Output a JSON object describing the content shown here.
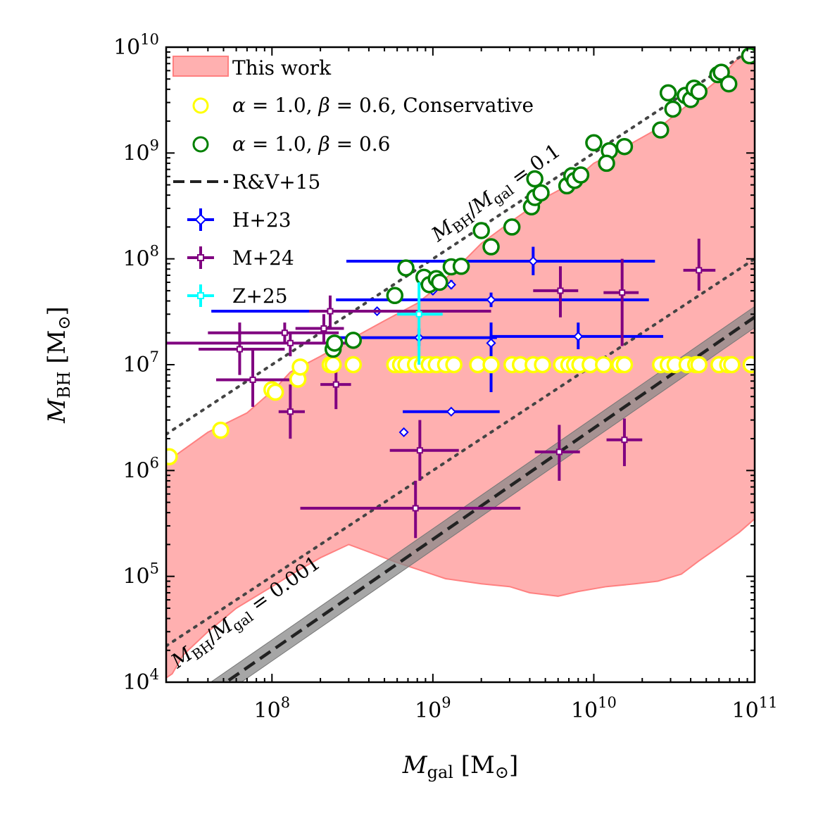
{
  "chart_data": {
    "type": "scatter",
    "x_scale": "log",
    "y_scale": "log",
    "xlim": [
      22000000.0,
      100000000000.0
    ],
    "ylim": [
      10000.0,
      10000000000.0
    ],
    "xlabel": "M_gal [M⊙]",
    "ylabel": "M_BH [M⊙]",
    "xlabel_main": "M",
    "xlabel_sub": "gal",
    "xlabel_unit": "[M",
    "xlabel_sun": "⊙",
    "ylabel_main": "M",
    "ylabel_sub": "BH",
    "ylabel_unit": "[M",
    "ylabel_sun": "⊙",
    "x_ticks": [
      {
        "value": 100000000.0,
        "base": "10",
        "exp": "8"
      },
      {
        "value": 1000000000.0,
        "base": "10",
        "exp": "9"
      },
      {
        "value": 10000000000.0,
        "base": "10",
        "exp": "10"
      },
      {
        "value": 100000000000.0,
        "base": "10",
        "exp": "11"
      }
    ],
    "y_ticks": [
      {
        "value": 10000.0,
        "base": "10",
        "exp": "4"
      },
      {
        "value": 100000.0,
        "base": "10",
        "exp": "5"
      },
      {
        "value": 1000000.0,
        "base": "10",
        "exp": "6"
      },
      {
        "value": 10000000.0,
        "base": "10",
        "exp": "7"
      },
      {
        "value": 100000000.0,
        "base": "10",
        "exp": "8"
      },
      {
        "value": 1000000000.0,
        "base": "10",
        "exp": "9"
      },
      {
        "value": 10000000000.0,
        "base": "10",
        "exp": "10"
      }
    ],
    "legend": {
      "placement": "upper-left",
      "entries": [
        {
          "key": "this_work",
          "label": "This work"
        },
        {
          "key": "conservative",
          "label": "α = 1.0, β = 0.6, Conservative"
        },
        {
          "key": "model",
          "label": "α = 1.0, β = 0.6"
        },
        {
          "key": "rv15",
          "label": "R&V+15"
        },
        {
          "key": "h23",
          "label": "H+23"
        },
        {
          "key": "m24",
          "label": "M+24"
        },
        {
          "key": "z25",
          "label": "Z+25"
        }
      ]
    },
    "annotations": [
      {
        "key": "ratio_01",
        "text": "M_BH/M_gal = 0.1",
        "ratio": 0.1
      },
      {
        "key": "ratio_0001",
        "text": "M_BH/M_gal = 0.001",
        "ratio": 0.001
      }
    ],
    "colors": {
      "this_work_fill": "#ffb0b0",
      "this_work_edge": "#ff8080",
      "conservative": "#ffff00",
      "model": "#008000",
      "rv15": "#222222",
      "rv15_band": "#888888",
      "h23": "#0000ff",
      "m24": "#800080",
      "z25": "#00ffff",
      "ratio_lines": "#444444"
    },
    "this_work_region": {
      "upper": [
        [
          22000000.0,
          1200000.0
        ],
        [
          40000000.0,
          2300000.0
        ],
        [
          70000000.0,
          3500000.0
        ],
        [
          105000000.0,
          6000000.0
        ],
        [
          130000000.0,
          8500000.0
        ],
        [
          200000000.0,
          12000000.0
        ],
        [
          300000000.0,
          17000000.0
        ],
        [
          500000000.0,
          26000000.0
        ],
        [
          800000000.0,
          38000000.0
        ],
        [
          1000000000.0,
          50000000.0
        ],
        [
          1500000000.0,
          90000000.0
        ],
        [
          2000000000.0,
          140000000.0
        ],
        [
          3000000000.0,
          220000000.0
        ],
        [
          5000000000.0,
          380000000.0
        ],
        [
          7000000000.0,
          500000000.0
        ],
        [
          10000000000.0,
          800000000.0
        ],
        [
          15000000000.0,
          1100000000.0
        ],
        [
          25000000000.0,
          1700000000.0
        ],
        [
          40000000000.0,
          3000000000.0
        ],
        [
          60000000000.0,
          5000000000.0
        ],
        [
          80000000000.0,
          8000000000.0
        ],
        [
          100000000000.0,
          10000000000.0
        ]
      ],
      "lower": [
        [
          100000000000.0,
          350000.0
        ],
        [
          80000000000.0,
          260000.0
        ],
        [
          60000000000.0,
          190000.0
        ],
        [
          45000000000.0,
          140000.0
        ],
        [
          35000000000.0,
          105000.0
        ],
        [
          25000000000.0,
          90000.0
        ],
        [
          18000000000.0,
          85000.0
        ],
        [
          12000000000.0,
          80000.0
        ],
        [
          8000000000.0,
          72000.0
        ],
        [
          6000000000.0,
          65000.0
        ],
        [
          4000000000.0,
          70000.0
        ],
        [
          3000000000.0,
          80000.0
        ],
        [
          2000000000.0,
          85000.0
        ],
        [
          1200000000.0,
          95000.0
        ],
        [
          900000000.0,
          110000.0
        ],
        [
          600000000.0,
          135000.0
        ],
        [
          400000000.0,
          170000.0
        ],
        [
          300000000.0,
          200000.0
        ],
        [
          200000000.0,
          150000.0
        ],
        [
          140000000.0,
          110000.0
        ],
        [
          100000000.0,
          80000.0
        ],
        [
          60000000.0,
          50000.0
        ],
        [
          40000000.0,
          30000.0
        ],
        [
          28000000.0,
          18000.0
        ],
        [
          24000000.0,
          12000.0
        ],
        [
          22000000.0,
          11000.0
        ]
      ]
    },
    "rv15_relation": {
      "description": "log M_BH = 7.45 + 1.05 log(M_gal/1e11)",
      "intercept_log": 7.45,
      "slope": 1.05,
      "scatter_dex": 0.1
    },
    "conservative_points": [
      [
        23000000.0,
        1350000.0
      ],
      [
        48000000.0,
        2400000.0
      ],
      [
        100000000.0,
        5800000.0
      ],
      [
        105000000.0,
        5500000.0
      ],
      [
        145000000.0,
        7300000.0
      ],
      [
        150000000.0,
        9500000.0
      ],
      [
        230000000.0,
        10000000.0
      ],
      [
        240000000.0,
        10000000.0
      ],
      [
        320000000.0,
        10000000.0
      ],
      [
        580000000.0,
        10000000.0
      ],
      [
        630000000.0,
        10000000.0
      ],
      [
        680000000.0,
        10000000.0
      ],
      [
        780000000.0,
        10000000.0
      ],
      [
        860000000.0,
        10000000.0
      ],
      [
        950000000.0,
        10000000.0
      ],
      [
        1050000000.0,
        10000000.0
      ],
      [
        1200000000.0,
        10000000.0
      ],
      [
        1350000000.0,
        10000000.0
      ],
      [
        1900000000.0,
        10000000.0
      ],
      [
        2300000000.0,
        10000000.0
      ],
      [
        3100000000.0,
        10000000.0
      ],
      [
        3500000000.0,
        10000000.0
      ],
      [
        4200000000.0,
        10000000.0
      ],
      [
        4800000000.0,
        10000000.0
      ],
      [
        6300000000.0,
        10000000.0
      ],
      [
        7000000000.0,
        10000000.0
      ],
      [
        7600000000.0,
        10000000.0
      ],
      [
        8200000000.0,
        10000000.0
      ],
      [
        9500000000.0,
        10000000.0
      ],
      [
        11500000000.0,
        10000000.0
      ],
      [
        14500000000.0,
        10000000.0
      ],
      [
        15500000000.0,
        10000000.0
      ],
      [
        26000000000.0,
        10000000.0
      ],
      [
        29000000000.0,
        10000000.0
      ],
      [
        32000000000.0,
        10000000.0
      ],
      [
        38000000000.0,
        10000000.0
      ],
      [
        43000000000.0,
        10000000.0
      ],
      [
        45000000000.0,
        10000000.0
      ],
      [
        60000000000.0,
        10000000.0
      ],
      [
        68000000000.0,
        10000000.0
      ],
      [
        72000000000.0,
        10000000.0
      ],
      [
        95000000000.0,
        10000000.0
      ]
    ],
    "model_points": [
      [
        240000000.0,
        14000000.0
      ],
      [
        245000000.0,
        16000000.0
      ],
      [
        320000000.0,
        17000000.0
      ],
      [
        580000000.0,
        45000000.0
      ],
      [
        680000000.0,
        82000000.0
      ],
      [
        880000000.0,
        67000000.0
      ],
      [
        950000000.0,
        57000000.0
      ],
      [
        1050000000.0,
        65000000.0
      ],
      [
        1100000000.0,
        60000000.0
      ],
      [
        1300000000.0,
        84000000.0
      ],
      [
        1500000000.0,
        85000000.0
      ],
      [
        2000000000.0,
        185000000.0
      ],
      [
        2300000000.0,
        130000000.0
      ],
      [
        3100000000.0,
        200000000.0
      ],
      [
        4100000000.0,
        310000000.0
      ],
      [
        4300000000.0,
        380000000.0
      ],
      [
        4700000000.0,
        420000000.0
      ],
      [
        4300000000.0,
        570000000.0
      ],
      [
        6800000000.0,
        490000000.0
      ],
      [
        7300000000.0,
        610000000.0
      ],
      [
        7600000000.0,
        550000000.0
      ],
      [
        8300000000.0,
        620000000.0
      ],
      [
        10000000000.0,
        1250000000.0
      ],
      [
        12500000000.0,
        1050000000.0
      ],
      [
        12000000000.0,
        800000000.0
      ],
      [
        15500000000.0,
        1150000000.0
      ],
      [
        26000000000.0,
        1650000000.0
      ],
      [
        29000000000.0,
        3700000000.0
      ],
      [
        31000000000.0,
        2600000000.0
      ],
      [
        37000000000.0,
        3500000000.0
      ],
      [
        40000000000.0,
        3200000000.0
      ],
      [
        42000000000.0,
        4100000000.0
      ],
      [
        45000000000.0,
        3800000000.0
      ],
      [
        59000000000.0,
        5500000000.0
      ],
      [
        62000000000.0,
        5800000000.0
      ],
      [
        69000000000.0,
        4500000000.0
      ],
      [
        93000000000.0,
        8300000000.0
      ]
    ],
    "h23_points": [
      {
        "x": 4200000000.0,
        "y": 95000000.0,
        "xlo": 290000000.0,
        "xhi": 24000000000.0,
        "ylo": 70000000.0,
        "yhi": 130000000.0
      },
      {
        "x": 1300000000.0,
        "y": 57000000.0,
        "xlo": 1300000000.0,
        "xhi": 1300000000.0,
        "ylo": 52000000.0,
        "yhi": 63000000.0
      },
      {
        "x": 1000000000.0,
        "y": 50000000.0,
        "xlo": 1000000000.0,
        "xhi": 1000000000.0,
        "ylo": 46000000.0,
        "yhi": 55000000.0
      },
      {
        "x": 450000000.0,
        "y": 32000000.0,
        "xlo": 42000000.0,
        "xhi": 2200000000.0,
        "ylo": 32000000.0,
        "yhi": 32000000.0
      },
      {
        "x": 2300000000.0,
        "y": 41000000.0,
        "xlo": 250000000.0,
        "xhi": 22000000000.0,
        "ylo": 35000000.0,
        "yhi": 48000000.0
      },
      {
        "x": 820000000.0,
        "y": 18000000.0,
        "xlo": 250000000.0,
        "xhi": 2500000000.0,
        "ylo": 15000000.0,
        "yhi": 22000000.0
      },
      {
        "x": 8000000000.0,
        "y": 18500000.0,
        "xlo": 2300000000.0,
        "xhi": 27000000000.0,
        "ylo": 14000000.0,
        "yhi": 25000000.0
      },
      {
        "x": 2300000000.0,
        "y": 16000000.0,
        "xlo": 2300000000.0,
        "xhi": 2300000000.0,
        "ylo": 5500000.0,
        "yhi": 25000000.0
      },
      {
        "x": 1300000000.0,
        "y": 3600000.0,
        "xlo": 650000000.0,
        "xhi": 2600000000.0,
        "ylo": 3600000.0,
        "yhi": 3600000.0
      },
      {
        "x": 660000000.0,
        "y": 2300000.0,
        "xlo": 660000000.0,
        "xhi": 660000000.0,
        "ylo": 2300000.0,
        "yhi": 2300000.0
      }
    ],
    "m24_points": [
      {
        "x": 45000000000.0,
        "y": 78000000.0,
        "xlo": 36000000000.0,
        "xhi": 57000000000.0,
        "ylo": 50000000.0,
        "yhi": 155000000.0
      },
      {
        "x": 6200000000.0,
        "y": 50000000.0,
        "xlo": 4200000000.0,
        "xhi": 8000000000.0,
        "ylo": 28000000.0,
        "yhi": 85000000.0
      },
      {
        "x": 15000000000.0,
        "y": 48000000.0,
        "xlo": 11500000000.0,
        "xhi": 19000000000.0,
        "ylo": 15000000.0,
        "yhi": 100000000.0
      },
      {
        "x": 230000000.0,
        "y": 32000000.0,
        "xlo": 170000000.0,
        "xhi": 2300000000.0,
        "ylo": 22000000.0,
        "yhi": 45000000.0
      },
      {
        "x": 210000000.0,
        "y": 22000000.0,
        "xlo": 140000000.0,
        "xhi": 280000000.0,
        "ylo": 16000000.0,
        "yhi": 30000000.0
      },
      {
        "x": 120000000.0,
        "y": 20000000.0,
        "xlo": 40000000.0,
        "xhi": 260000000.0,
        "ylo": 16000000.0,
        "yhi": 25000000.0
      },
      {
        "x": 130000000.0,
        "y": 16000000.0,
        "xlo": 22000000.0,
        "xhi": 320000000.0,
        "ylo": 12000000.0,
        "yhi": 20000000.0
      },
      {
        "x": 63000000.0,
        "y": 14000000.0,
        "xlo": 35000000.0,
        "xhi": 120000000.0,
        "ylo": 8000000.0,
        "yhi": 25000000.0
      },
      {
        "x": 76000000.0,
        "y": 7200000.0,
        "xlo": 45000000.0,
        "xhi": 150000000.0,
        "ylo": 4000000.0,
        "yhi": 14000000.0
      },
      {
        "x": 130000000.0,
        "y": 3600000.0,
        "xlo": 110000000.0,
        "xhi": 160000000.0,
        "ylo": 2000000.0,
        "yhi": 6500000.0
      },
      {
        "x": 250000000.0,
        "y": 6500000.0,
        "xlo": 200000000.0,
        "xhi": 310000000.0,
        "ylo": 3800000.0,
        "yhi": 10000000.0
      },
      {
        "x": 830000000.0,
        "y": 1550000.0,
        "xlo": 540000000.0,
        "xhi": 1450000000.0,
        "ylo": 800000.0,
        "yhi": 3000000.0
      },
      {
        "x": 780000000.0,
        "y": 440000.0,
        "xlo": 150000000.0,
        "xhi": 3500000000.0,
        "ylo": 230000.0,
        "yhi": 800000.0
      },
      {
        "x": 6100000000.0,
        "y": 1500000.0,
        "xlo": 4300000000.0,
        "xhi": 8200000000.0,
        "ylo": 800000.0,
        "yhi": 2700000.0
      },
      {
        "x": 15500000000.0,
        "y": 1950000.0,
        "xlo": 12000000000.0,
        "xhi": 20000000000.0,
        "ylo": 1100000.0,
        "yhi": 3100000.0
      }
    ],
    "z25_points": [
      {
        "x": 820000000.0,
        "y": 30000000.0,
        "xlo": 600000000.0,
        "xhi": 1150000000.0,
        "ylo": 10000000.0,
        "yhi": 60000000.0
      }
    ]
  }
}
